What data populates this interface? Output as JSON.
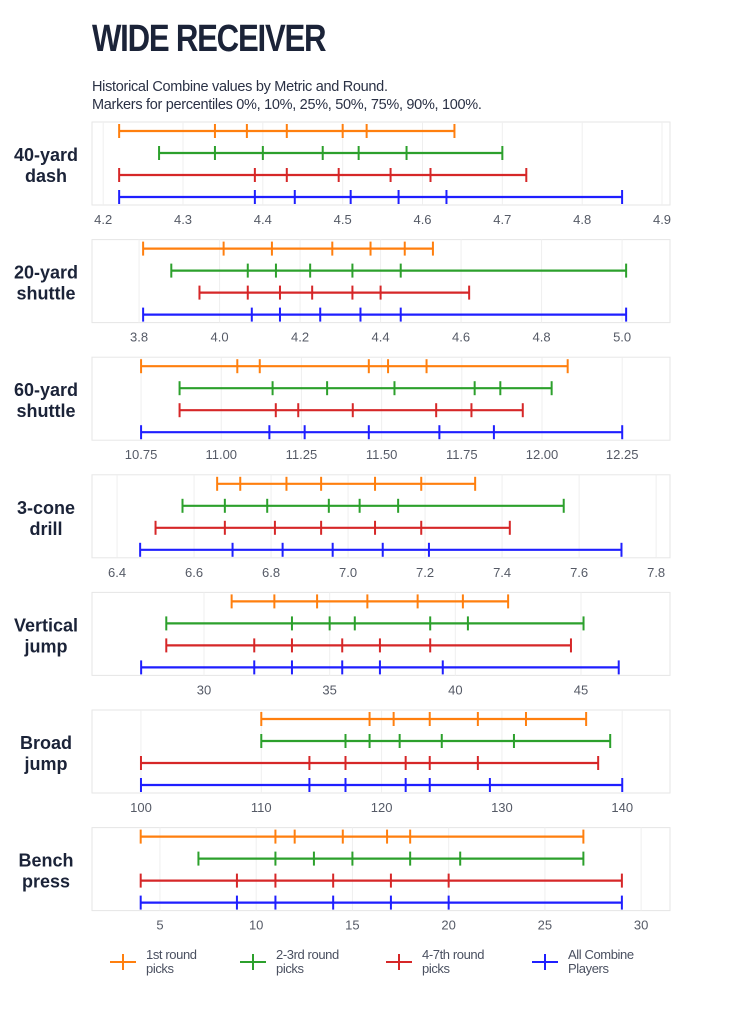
{
  "title": "WIDE RECEIVER",
  "subtitle_lines": [
    "Historical Combine values by Metric and Round.",
    "Markers for percentiles 0%, 10%, 25%, 50%, 75%, 90%, 100%."
  ],
  "colors": {
    "1st round picks": "#ff7f0e",
    "2-3rd round picks": "#2ca02c",
    "4-7th round picks": "#d62728",
    "All Combine Players": "#1f1fff",
    "title": "#1b2338"
  },
  "legend": [
    {
      "line1": "1st round",
      "line2": "picks"
    },
    {
      "line1": "2-3rd round",
      "line2": "picks"
    },
    {
      "line1": "4-7th round",
      "line2": "picks"
    },
    {
      "line1": "All Combine",
      "line2": "Players"
    }
  ],
  "chart_data": [
    {
      "type": "errorbar-percentile",
      "metric_lines": [
        "40-yard",
        "dash"
      ],
      "xlim": [
        4.186,
        4.91
      ],
      "ticks": [
        "4.2",
        "4.3",
        "4.4",
        "4.5",
        "4.6",
        "4.7",
        "4.8",
        "4.9"
      ],
      "grid": true,
      "series": [
        {
          "name": "1st round picks",
          "values": [
            4.22,
            4.34,
            4.38,
            4.43,
            4.5,
            4.53,
            4.64
          ]
        },
        {
          "name": "2-3rd round picks",
          "values": [
            4.27,
            4.34,
            4.4,
            4.475,
            4.52,
            4.58,
            4.7
          ]
        },
        {
          "name": "4-7th round picks",
          "values": [
            4.22,
            4.39,
            4.43,
            4.495,
            4.56,
            4.61,
            4.73
          ]
        },
        {
          "name": "All Combine Players",
          "values": [
            4.22,
            4.39,
            4.44,
            4.51,
            4.57,
            4.63,
            4.85
          ]
        }
      ]
    },
    {
      "type": "errorbar-percentile",
      "metric_lines": [
        "20-yard",
        "shuttle"
      ],
      "xlim": [
        3.683,
        5.119
      ],
      "ticks": [
        "3.8",
        "4.0",
        "4.2",
        "4.4",
        "4.6",
        "4.8",
        "5.0"
      ],
      "grid": true,
      "series": [
        {
          "name": "1st round picks",
          "values": [
            3.81,
            4.01,
            4.13,
            4.28,
            4.375,
            4.46,
            4.53
          ]
        },
        {
          "name": "2-3rd round picks",
          "values": [
            3.88,
            4.07,
            4.14,
            4.225,
            4.33,
            4.45,
            5.01
          ]
        },
        {
          "name": "4-7th round picks",
          "values": [
            3.95,
            4.07,
            4.15,
            4.23,
            4.33,
            4.4,
            4.62
          ]
        },
        {
          "name": "All Combine Players",
          "values": [
            3.81,
            4.08,
            4.15,
            4.25,
            4.35,
            4.45,
            5.01
          ]
        }
      ]
    },
    {
      "type": "errorbar-percentile",
      "metric_lines": [
        "60-yard",
        "shuttle"
      ],
      "xlim": [
        10.597,
        12.399
      ],
      "ticks": [
        "10.75",
        "11.00",
        "11.25",
        "11.50",
        "11.75",
        "12.00",
        "12.25"
      ],
      "grid": true,
      "series": [
        {
          "name": "1st round picks",
          "values": [
            10.75,
            11.05,
            11.12,
            11.46,
            11.52,
            11.64,
            12.08
          ]
        },
        {
          "name": "2-3rd round picks",
          "values": [
            10.87,
            11.16,
            11.33,
            11.54,
            11.79,
            11.87,
            12.03
          ]
        },
        {
          "name": "4-7th round picks",
          "values": [
            10.87,
            11.17,
            11.24,
            11.41,
            11.67,
            11.78,
            11.94
          ]
        },
        {
          "name": "All Combine Players",
          "values": [
            10.75,
            11.15,
            11.26,
            11.46,
            11.68,
            11.85,
            12.25
          ]
        }
      ]
    },
    {
      "type": "errorbar-percentile",
      "metric_lines": [
        "3-cone",
        "drill"
      ],
      "xlim": [
        6.335,
        7.836
      ],
      "ticks": [
        "6.4",
        "6.6",
        "6.8",
        "7.0",
        "7.2",
        "7.4",
        "7.6",
        "7.8"
      ],
      "grid": true,
      "series": [
        {
          "name": "1st round picks",
          "values": [
            6.66,
            6.72,
            6.84,
            6.93,
            7.07,
            7.19,
            7.33
          ]
        },
        {
          "name": "2-3rd round picks",
          "values": [
            6.57,
            6.68,
            6.79,
            6.95,
            7.03,
            7.13,
            7.56
          ]
        },
        {
          "name": "4-7th round picks",
          "values": [
            6.5,
            6.68,
            6.81,
            6.93,
            7.07,
            7.19,
            7.42
          ]
        },
        {
          "name": "All Combine Players",
          "values": [
            6.46,
            6.7,
            6.83,
            6.96,
            7.09,
            7.21,
            7.71
          ]
        }
      ]
    },
    {
      "type": "errorbar-percentile",
      "metric_lines": [
        "Vertical",
        "jump"
      ],
      "xlim": [
        25.545,
        48.54
      ],
      "ticks": [
        "30",
        "35",
        "40",
        "45"
      ],
      "grid": true,
      "series": [
        {
          "name": "1st round picks",
          "values": [
            31.1,
            32.8,
            34.5,
            36.5,
            38.5,
            40.3,
            42.1
          ]
        },
        {
          "name": "2-3rd round picks",
          "values": [
            28.5,
            33.5,
            35.0,
            36.0,
            39.0,
            40.5,
            45.1
          ]
        },
        {
          "name": "4-7th round picks",
          "values": [
            28.5,
            32.0,
            33.5,
            35.5,
            37.0,
            39.0,
            44.6
          ]
        },
        {
          "name": "All Combine Players",
          "values": [
            27.5,
            32.0,
            33.5,
            35.5,
            37.0,
            39.5,
            46.5
          ]
        }
      ]
    },
    {
      "type": "errorbar-percentile",
      "metric_lines": [
        "Broad",
        "jump"
      ],
      "xlim": [
        95.93,
        143.97
      ],
      "ticks": [
        "100",
        "110",
        "120",
        "130",
        "140"
      ],
      "grid": true,
      "series": [
        {
          "name": "1st round picks",
          "values": [
            110,
            119,
            121,
            124,
            128,
            132,
            137
          ]
        },
        {
          "name": "2-3rd round picks",
          "values": [
            110,
            117,
            119,
            121.5,
            125,
            131,
            139
          ]
        },
        {
          "name": "4-7th round picks",
          "values": [
            100,
            114,
            117,
            122,
            124,
            128,
            138
          ]
        },
        {
          "name": "All Combine Players",
          "values": [
            100,
            114,
            117,
            122,
            124,
            129,
            140
          ]
        }
      ]
    },
    {
      "type": "errorbar-percentile",
      "metric_lines": [
        "Bench",
        "press"
      ],
      "xlim": [
        1.47,
        31.5
      ],
      "ticks": [
        "5",
        "10",
        "15",
        "20",
        "25",
        "30"
      ],
      "grid": true,
      "series": [
        {
          "name": "1st round picks",
          "values": [
            4,
            11,
            12,
            14.5,
            16.8,
            18,
            27
          ]
        },
        {
          "name": "2-3rd round picks",
          "values": [
            7,
            11,
            13,
            15,
            18,
            20.6,
            27
          ]
        },
        {
          "name": "4-7th round picks",
          "values": [
            4,
            9,
            11,
            14,
            17,
            20,
            29
          ]
        },
        {
          "name": "All Combine Players",
          "values": [
            4,
            9,
            11,
            14,
            17,
            20,
            29
          ]
        }
      ]
    }
  ]
}
